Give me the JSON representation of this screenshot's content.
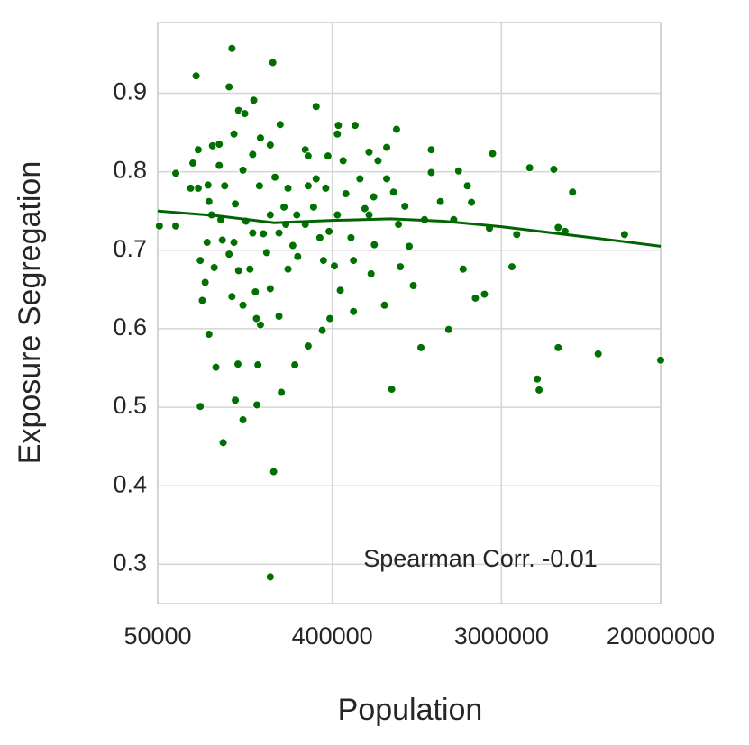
{
  "chart_data": {
    "type": "scatter",
    "xlabel": "Population",
    "ylabel": "Exposure Segregation",
    "annotation": "Spearman Corr. -0.01",
    "xscale": "log",
    "grid": true,
    "color": "#007000",
    "xlim": [
      50000,
      20000000
    ],
    "xticks": [
      50000,
      400000,
      3000000,
      20000000
    ],
    "ylim": [
      0.25,
      0.99
    ],
    "yticks": [
      0.3,
      0.4,
      0.5,
      0.6,
      0.7,
      0.8,
      0.9
    ],
    "x": [
      51000,
      62000,
      62000,
      79000,
      81000,
      81000,
      83000,
      83000,
      85000,
      92000,
      96000,
      100000,
      104000,
      109000,
      117000,
      121000,
      124000,
      126000,
      130000,
      138000,
      131000,
      141000,
      157000,
      163000,
      165000,
      170000,
      197000,
      199000,
      191000,
      218000,
      256000,
      300000,
      330000,
      355000,
      389000,
      425000,
      430000,
      525000,
      812000,
      860000,
      1150000,
      1600000,
      2450000,
      2200000,
      2700000,
      4200000,
      4600000,
      4700000,
      5600000,
      5900000,
      7000000,
      9500000,
      20000000,
      13000000,
      5900000,
      6400000,
      3400000,
      3600000,
      2600000,
      2100000,
      1900000,
      2000000,
      1800000,
      1300000,
      1000000,
      1050000,
      1300000,
      900000,
      745000,
      660000,
      635000,
      590000,
      515000,
      500000,
      470000,
      440000,
      410000,
      385000,
      370000,
      345000,
      320000,
      300000,
      290000,
      265000,
      250000,
      236000,
      230000,
      225000,
      212000,
      202000,
      191000,
      183000,
      176000,
      168000,
      160000,
      155000,
      150000,
      143000,
      138000,
      131000,
      126000,
      121000,
      117000,
      111000,
      108000,
      104000,
      98000,
      95000,
      91000,
      88000,
      191000,
      215000,
      170000,
      300000,
      690000,
      620000,
      765000,
      556000,
      830000,
      950000,
      1200000,
      1450000,
      1700000,
      515000,
      360000,
      290000,
      236000,
      212000,
      155000,
      124000,
      106000,
      90000,
      92000,
      74000,
      76000,
      138000,
      162000,
      191000,
      262000,
      425000,
      620000,
      765000,
      880000,
      455000,
      330000,
      380000,
      655000
    ],
    "values": [
      0.731,
      0.798,
      0.731,
      0.922,
      0.828,
      0.779,
      0.687,
      0.501,
      0.636,
      0.593,
      0.833,
      0.551,
      0.835,
      0.455,
      0.908,
      0.957,
      0.848,
      0.509,
      0.555,
      0.484,
      0.878,
      0.874,
      0.891,
      0.503,
      0.554,
      0.605,
      0.939,
      0.418,
      0.284,
      0.519,
      0.554,
      0.578,
      0.883,
      0.598,
      0.613,
      0.848,
      0.859,
      0.859,
      0.523,
      0.854,
      0.576,
      0.599,
      0.644,
      0.639,
      0.823,
      0.805,
      0.536,
      0.522,
      0.803,
      0.576,
      0.774,
      0.568,
      0.56,
      0.72,
      0.729,
      0.724,
      0.679,
      0.72,
      0.728,
      0.761,
      0.676,
      0.782,
      0.801,
      0.799,
      0.705,
      0.655,
      0.828,
      0.679,
      0.63,
      0.707,
      0.67,
      0.753,
      0.622,
      0.716,
      0.772,
      0.649,
      0.68,
      0.724,
      0.779,
      0.716,
      0.755,
      0.782,
      0.828,
      0.692,
      0.706,
      0.676,
      0.733,
      0.755,
      0.616,
      0.793,
      0.651,
      0.697,
      0.721,
      0.782,
      0.647,
      0.822,
      0.676,
      0.737,
      0.802,
      0.674,
      0.759,
      0.641,
      0.695,
      0.782,
      0.713,
      0.808,
      0.678,
      0.745,
      0.783,
      0.659,
      0.834,
      0.86,
      0.843,
      0.82,
      0.814,
      0.825,
      0.831,
      0.791,
      0.774,
      0.756,
      0.739,
      0.762,
      0.739,
      0.687,
      0.687,
      0.733,
      0.779,
      0.722,
      0.722,
      0.71,
      0.739,
      0.71,
      0.762,
      0.779,
      0.811,
      0.63,
      0.613,
      0.745,
      0.745,
      0.745,
      0.745,
      0.791,
      0.733,
      0.814,
      0.791,
      0.82,
      0.768
    ],
    "trend": {
      "color": "#006400",
      "x": [
        50000,
        100000,
        200000,
        400000,
        800000,
        1500000,
        3000000,
        6000000,
        12000000,
        20000000
      ],
      "values": [
        0.75,
        0.744,
        0.735,
        0.738,
        0.74,
        0.737,
        0.73,
        0.721,
        0.712,
        0.705
      ]
    }
  }
}
